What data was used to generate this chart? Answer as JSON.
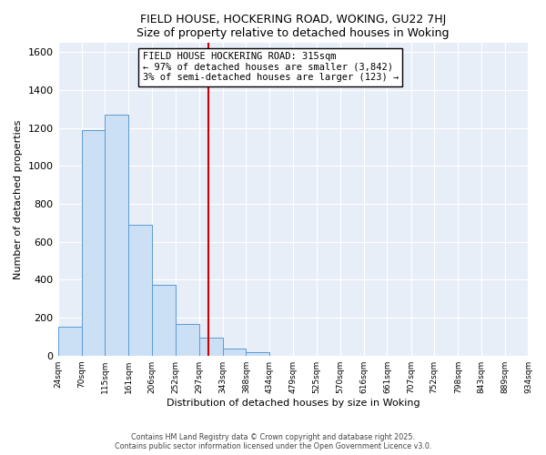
{
  "title1": "FIELD HOUSE, HOCKERING ROAD, WOKING, GU22 7HJ",
  "title2": "Size of property relative to detached houses in Woking",
  "xlabel": "Distribution of detached houses by size in Woking",
  "ylabel": "Number of detached properties",
  "bar_heights": [
    150,
    1190,
    1270,
    690,
    375,
    165,
    95,
    35,
    20,
    0,
    0,
    0,
    0,
    0,
    0,
    0,
    0,
    0,
    0,
    0
  ],
  "bin_edges": [
    24,
    70,
    115,
    161,
    206,
    252,
    297,
    343,
    388,
    434,
    479,
    525,
    570,
    616,
    661,
    707,
    752,
    798,
    843,
    889,
    934
  ],
  "tick_labels": [
    "24sqm",
    "70sqm",
    "115sqm",
    "161sqm",
    "206sqm",
    "252sqm",
    "297sqm",
    "343sqm",
    "388sqm",
    "434sqm",
    "479sqm",
    "525sqm",
    "570sqm",
    "616sqm",
    "661sqm",
    "707sqm",
    "752sqm",
    "798sqm",
    "843sqm",
    "889sqm",
    "934sqm"
  ],
  "bar_face_color": "#cce0f5",
  "bar_edge_color": "#5b9bd5",
  "vline_x": 315,
  "vline_color": "#cc0000",
  "ylim": [
    0,
    1650
  ],
  "xlim": [
    24,
    934
  ],
  "annotation_line1": "FIELD HOUSE HOCKERING ROAD: 315sqm",
  "annotation_line2": "← 97% of detached houses are smaller (3,842)",
  "annotation_line3": "3% of semi-detached houses are larger (123) →",
  "footer1": "Contains HM Land Registry data © Crown copyright and database right 2025.",
  "footer2": "Contains public sector information licensed under the Open Government Licence v3.0.",
  "background_color": "#ffffff",
  "plot_bg_color": "#e8eef8",
  "grid_color": "#ffffff",
  "ytick_interval": 200
}
